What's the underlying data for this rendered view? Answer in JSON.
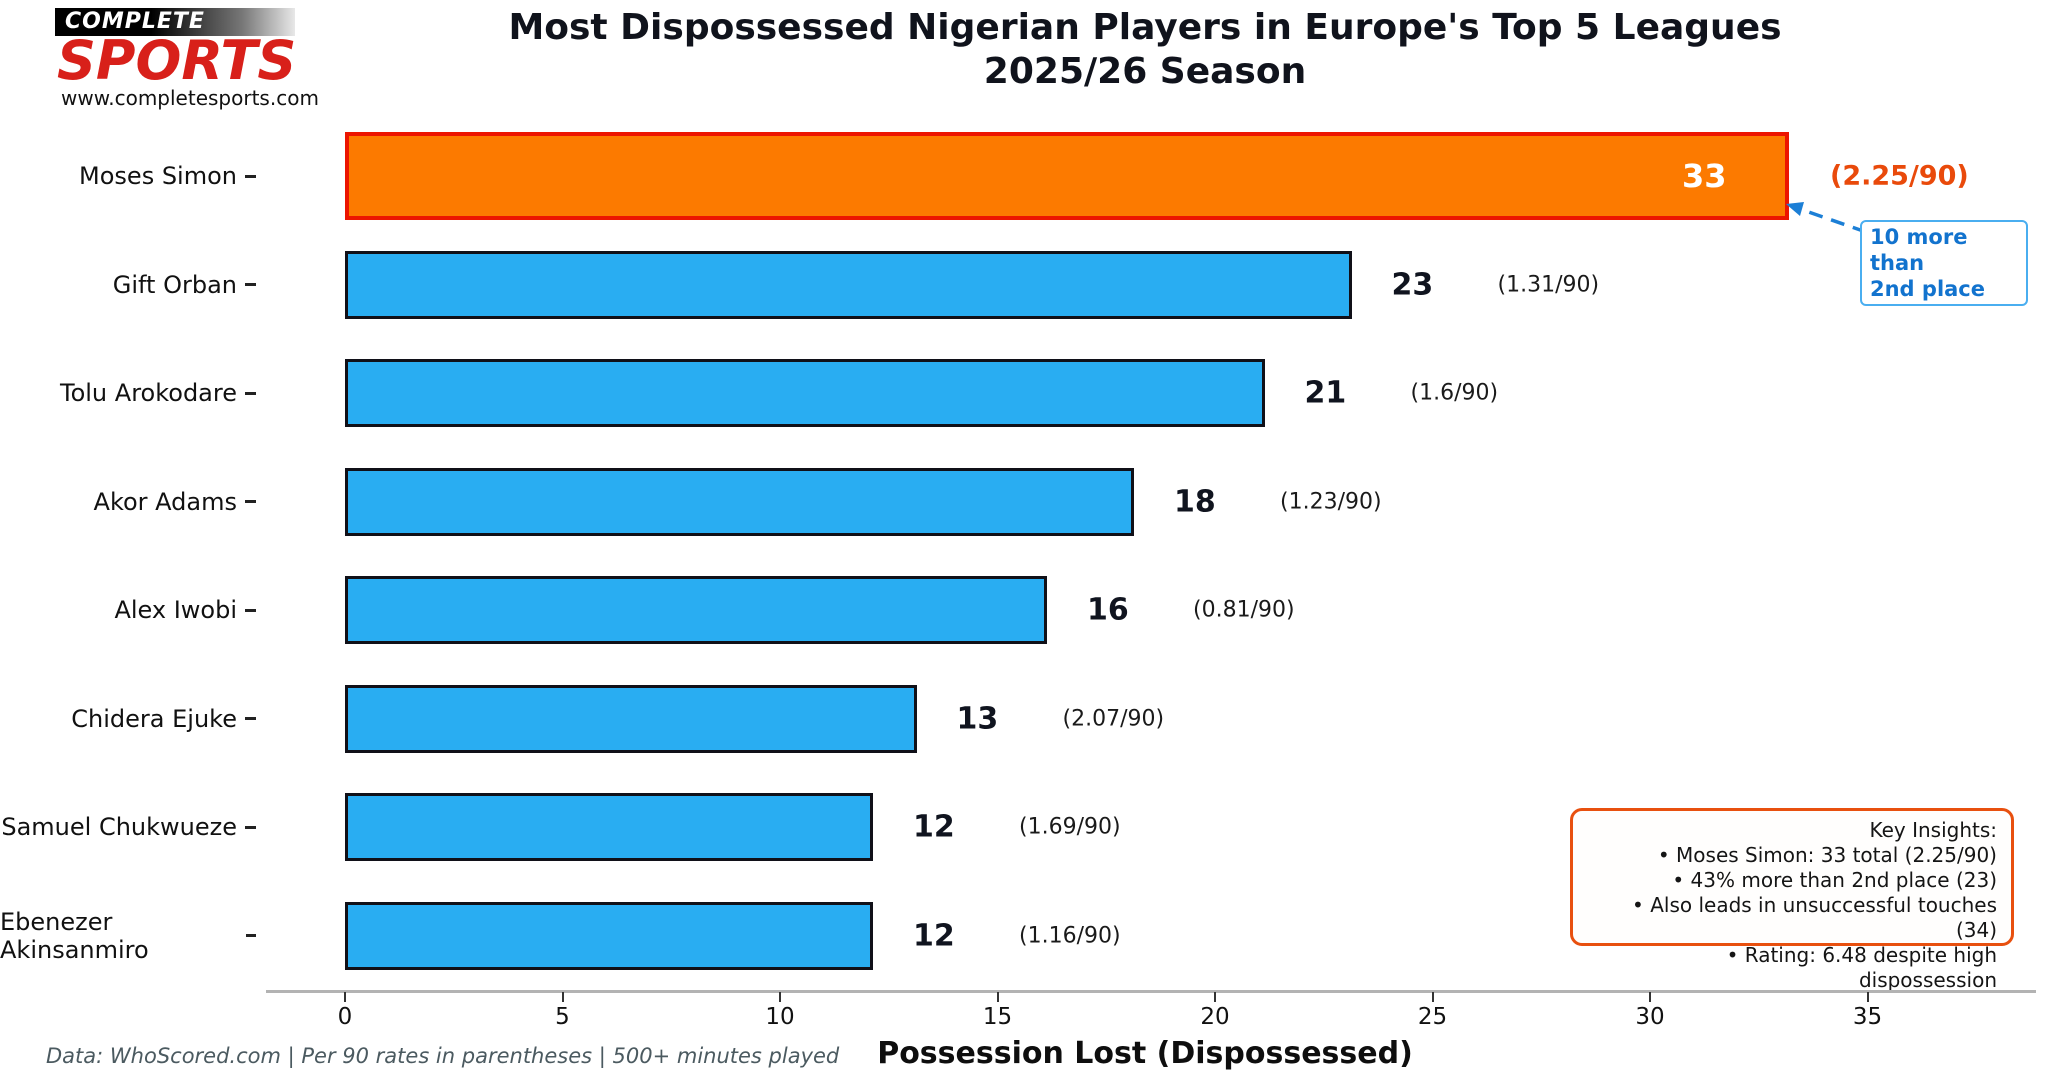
{
  "logo": {
    "top": "COMPLETE",
    "main": "SPORTS",
    "url": "www.completesports.com"
  },
  "title": {
    "line1": "Most Dispossessed Nigerian Players in Europe's Top 5 Leagues",
    "line2": "2025/26 Season"
  },
  "chart_data": {
    "type": "bar",
    "orientation": "horizontal",
    "categories": [
      "Moses Simon",
      "Gift Orban",
      "Tolu Arokodare",
      "Akor Adams",
      "Alex Iwobi",
      "Chidera Ejuke",
      "Samuel Chukwueze",
      "Ebenezer Akinsanmiro"
    ],
    "values": [
      33,
      23,
      21,
      18,
      16,
      13,
      12,
      12
    ],
    "per90_labels": [
      "(2.25/90)",
      "(1.31/90)",
      "(1.6/90)",
      "(1.23/90)",
      "(0.81/90)",
      "(2.07/90)",
      "(1.69/90)",
      "(1.16/90)"
    ],
    "highlight_index": 0,
    "title": "Most Dispossessed Nigerian Players in Europe's Top 5 Leagues 2025/26 Season",
    "xlabel": "Possession Lost (Dispossessed)",
    "xticks": [
      0,
      5,
      10,
      15,
      20,
      25,
      30,
      35
    ],
    "xlim": [
      0,
      38.6
    ],
    "grid": false,
    "colors": {
      "bar": "#29adf2",
      "bar_border": "#101018",
      "highlight_bar": "#fc7a00",
      "highlight_border": "#ec1500",
      "highlight_value_text": "#ffffff",
      "highlight_per90_text": "#e94a0b",
      "annotation_blue": "#1273ce",
      "insights_border": "#e8500f"
    }
  },
  "annotation": {
    "line1": "10 more than",
    "line2": "2nd place"
  },
  "insights": {
    "title": "Key Insights:",
    "bullets": [
      "• Moses Simon: 33 total (2.25/90)",
      "• 43% more than 2nd place (23)",
      "• Also leads in unsuccessful touches (34)",
      "• Rating: 6.48 despite high dispossession"
    ]
  },
  "footer": "Data: WhoScored.com | Per 90 rates in parentheses | 500+ minutes played"
}
